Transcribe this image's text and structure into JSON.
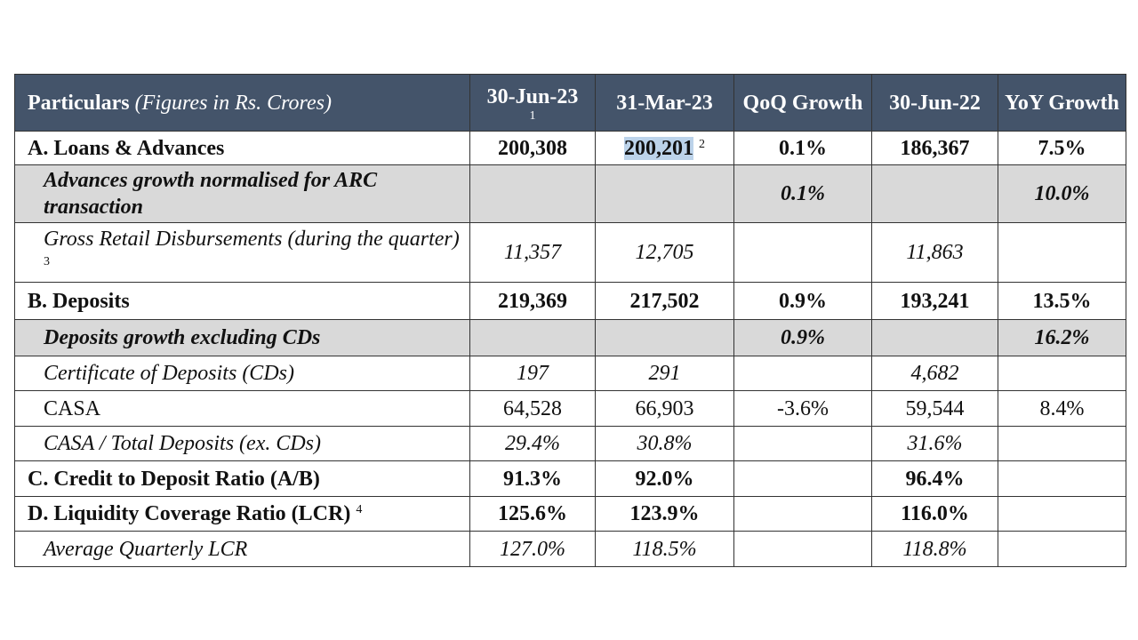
{
  "table": {
    "header": {
      "particulars": "Particulars",
      "units": "(Figures in Rs. Crores)",
      "columns": [
        {
          "text": "30-Jun-23",
          "note": "1"
        },
        {
          "text": "31-Mar-23"
        },
        {
          "text": "QoQ Growth"
        },
        {
          "text": "30-Jun-22"
        },
        {
          "text": "YoY Growth"
        }
      ]
    },
    "rows": [
      {
        "label": "A. Loans & Advances",
        "values": [
          "200,308",
          {
            "text": "200,201",
            "note": "2"
          },
          "0.1%",
          "186,367",
          "7.5%"
        ]
      },
      {
        "label": "Advances growth normalised for ARC transaction",
        "values": [
          null,
          null,
          "0.1%",
          null,
          "10.0%"
        ]
      },
      {
        "label": "Gross Retail Disbursements (during the quarter)",
        "label_note": "3",
        "values": [
          "11,357",
          "12,705",
          null,
          "11,863",
          null
        ]
      },
      {
        "label": "B. Deposits",
        "values": [
          "219,369",
          "217,502",
          "0.9%",
          "193,241",
          "13.5%"
        ]
      },
      {
        "label": "Deposits growth excluding CDs",
        "values": [
          null,
          null,
          "0.9%",
          null,
          "16.2%"
        ]
      },
      {
        "label": "Certificate of Deposits (CDs)",
        "values": [
          "197",
          "291",
          null,
          "4,682",
          null
        ]
      },
      {
        "label": "CASA",
        "values": [
          "64,528",
          "66,903",
          "-3.6%",
          "59,544",
          "8.4%"
        ]
      },
      {
        "label": "CASA / Total Deposits (ex. CDs)",
        "values": [
          "29.4%",
          "30.8%",
          null,
          "31.6%",
          null
        ]
      },
      {
        "label": "C. Credit to Deposit Ratio (A/B)",
        "values": [
          "91.3%",
          "92.0%",
          null,
          "96.4%",
          null
        ]
      },
      {
        "label": "D. Liquidity Coverage Ratio (LCR)",
        "label_note": "4",
        "values": [
          "125.6%",
          "123.9%",
          null,
          "116.0%",
          null
        ]
      },
      {
        "label": "Average Quarterly LCR",
        "values": [
          "127.0%",
          "118.5%",
          null,
          "118.8%",
          null
        ]
      }
    ]
  }
}
